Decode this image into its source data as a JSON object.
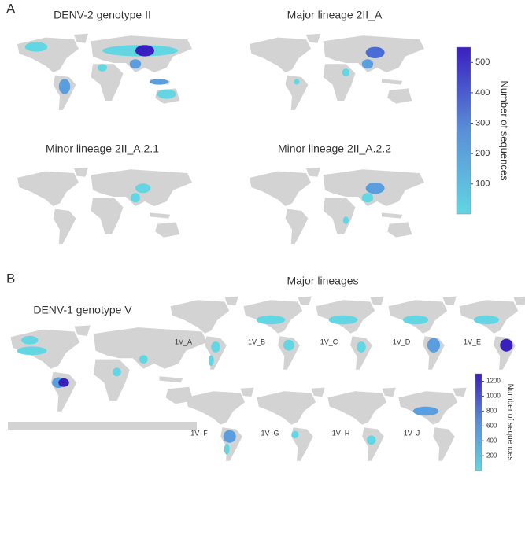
{
  "panels": [
    {
      "label": "A",
      "maps": [
        "DENV-2 genotype II",
        "Major lineage 2II_A",
        "Minor lineage 2II_A.2.1",
        "Minor lineage 2II_A.2.2"
      ],
      "colorbar": {
        "label": "Number of sequences",
        "lim": [
          1,
          550
        ],
        "ticks": [
          100,
          200,
          300,
          400,
          500
        ]
      }
    },
    {
      "label": "B",
      "title": "Major lineages",
      "genotype": "DENV-1 genotype V",
      "lineages": [
        "1V_A",
        "1V_B",
        "1V_C",
        "1V_D",
        "1V_E",
        "1V_F",
        "1V_G",
        "1V_H",
        "1V_J"
      ],
      "colorbar": {
        "label": "Number of sequences",
        "lim": [
          1,
          1300
        ],
        "ticks": [
          200,
          400,
          600,
          800,
          1000,
          1200
        ]
      }
    }
  ]
}
